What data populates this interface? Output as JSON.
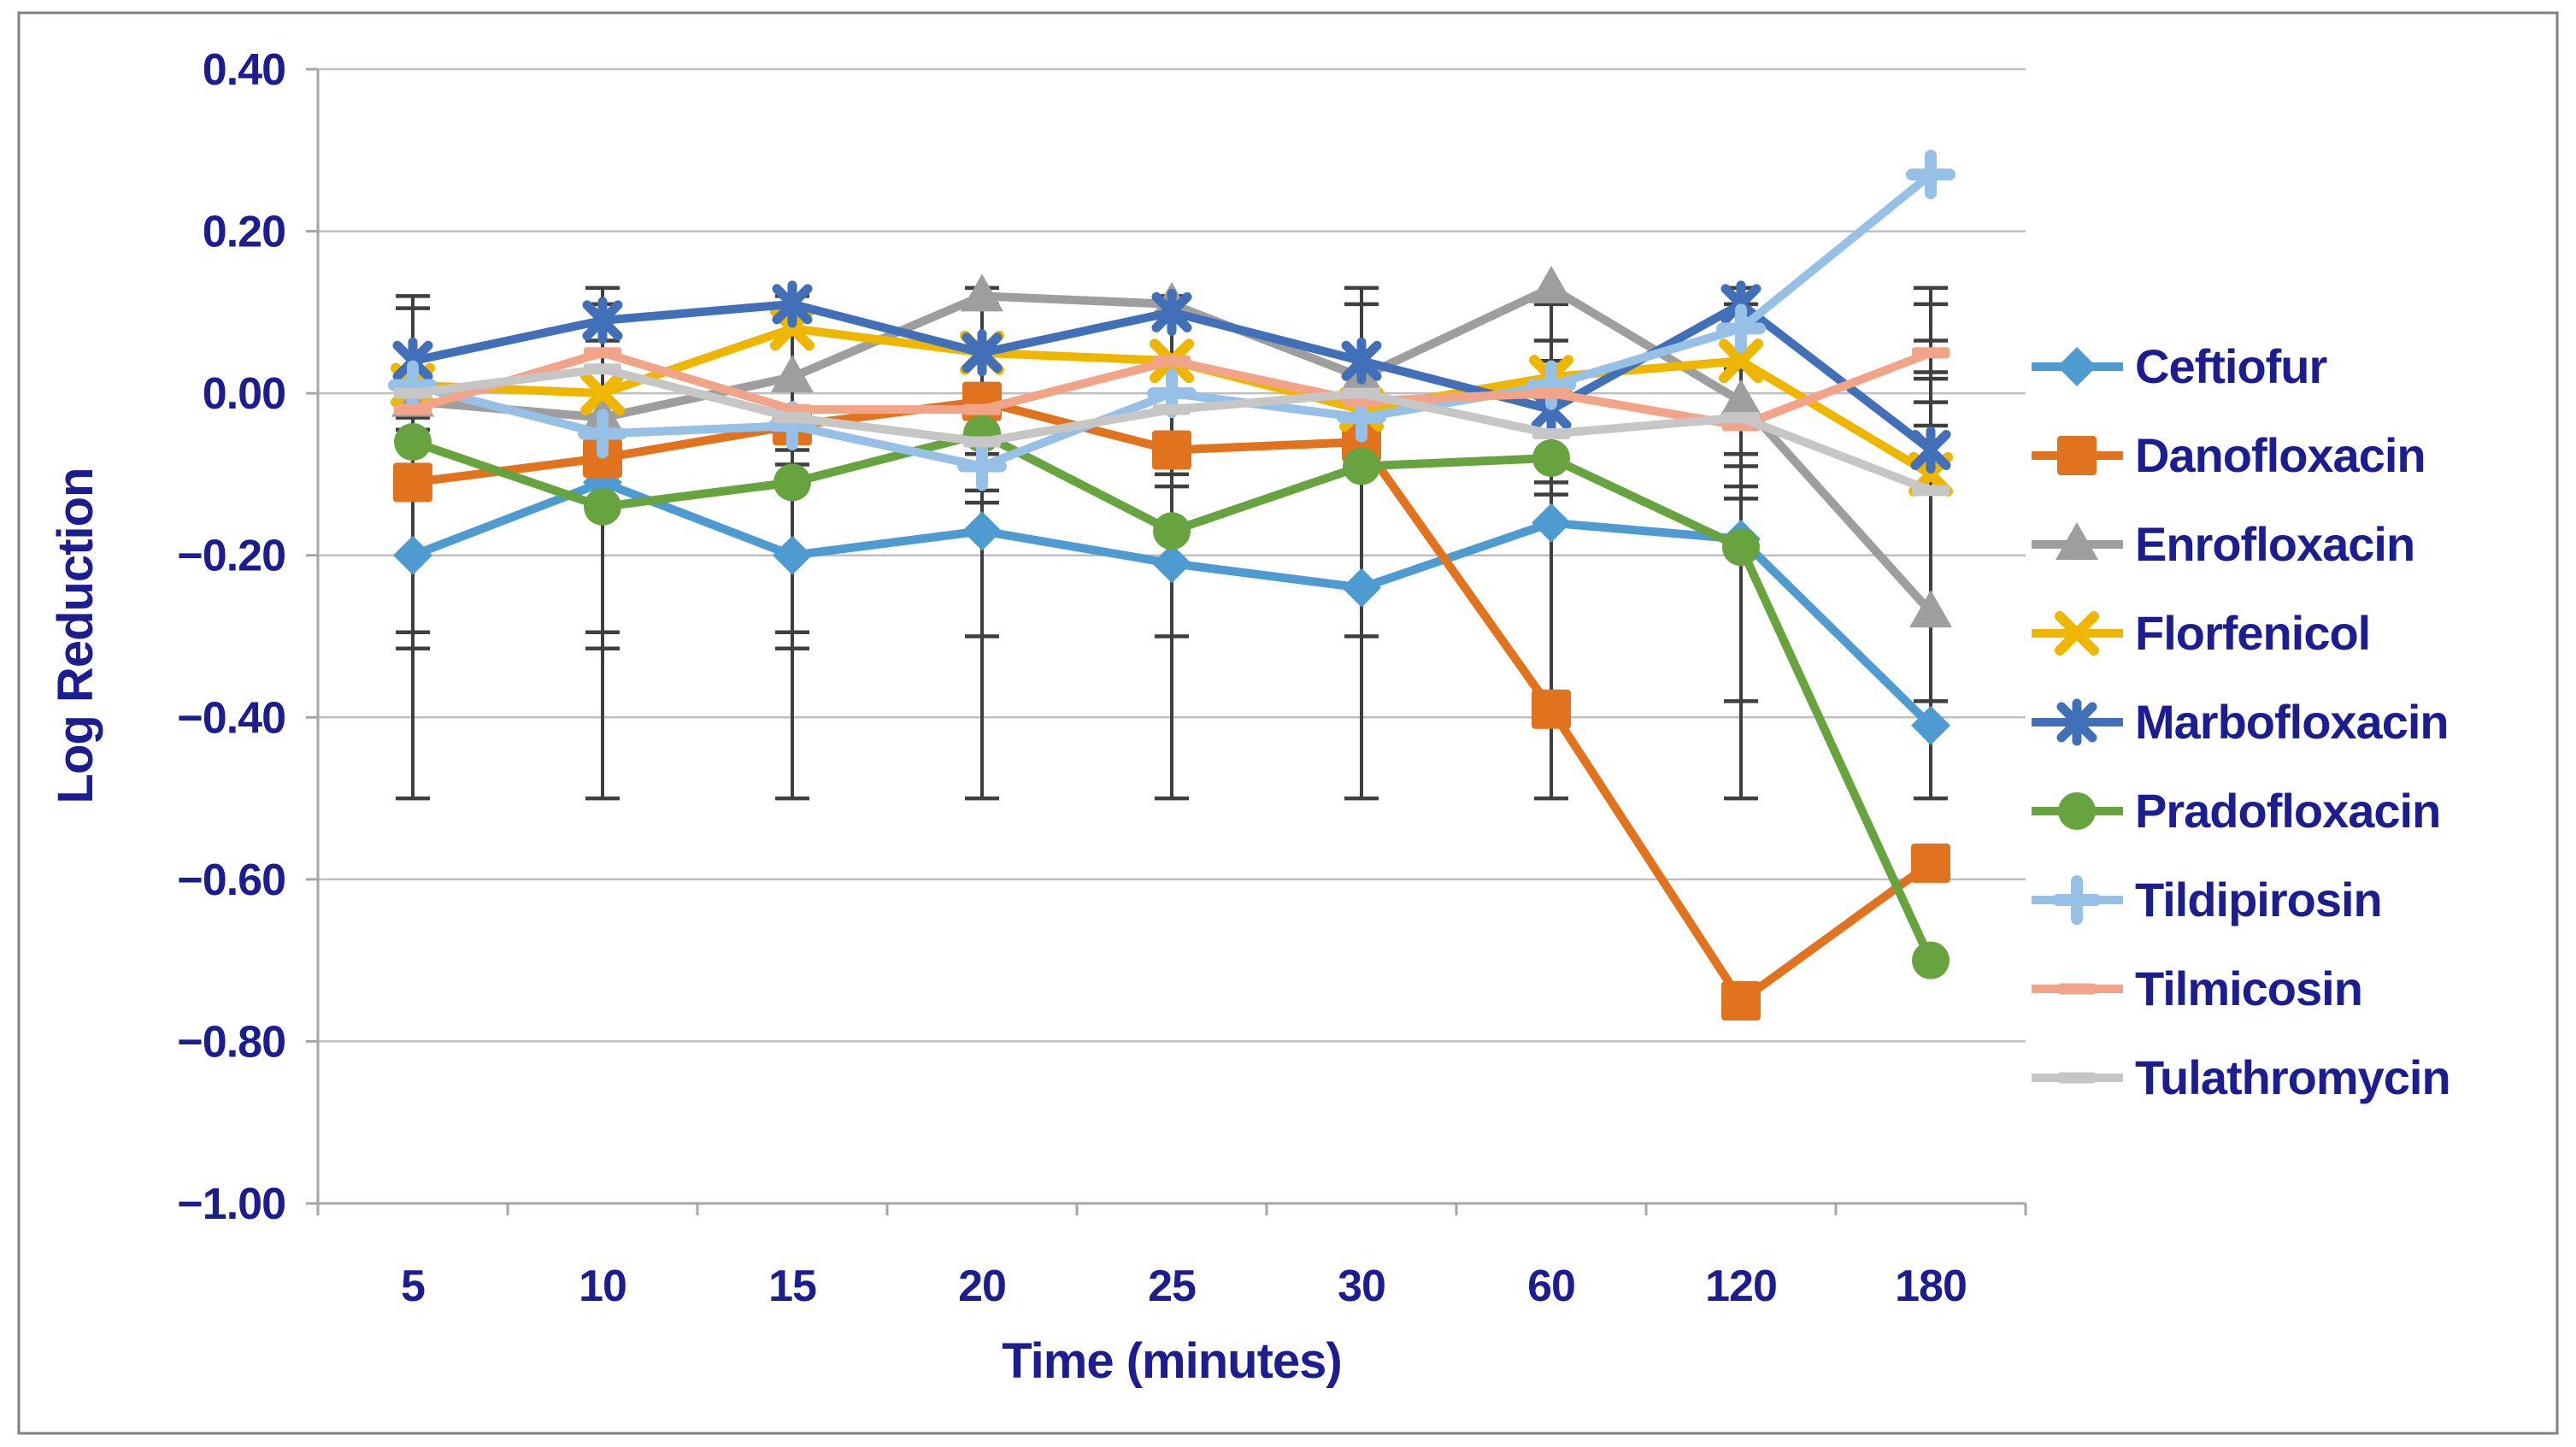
{
  "chart_data": {
    "type": "line",
    "title": "",
    "xlabel": "Time (minutes)",
    "ylabel": "Log Reduction",
    "x_categories": [
      "5",
      "10",
      "15",
      "20",
      "25",
      "30",
      "60",
      "120",
      "180"
    ],
    "ylim": [
      -1.0,
      0.4
    ],
    "ytick_step": 0.2,
    "yticks": [
      "0.40",
      "0.20",
      "0.00",
      "−0.20",
      "−0.40",
      "−0.60",
      "−0.80",
      "−1.00"
    ],
    "grid": "horizontal-only",
    "legend_position": "right",
    "series": [
      {
        "name": "Ceftiofur",
        "color": "#4E9BD2",
        "marker": "diamond",
        "values": [
          -0.2,
          -0.11,
          -0.2,
          -0.17,
          -0.21,
          -0.24,
          -0.16,
          -0.18,
          -0.41
        ]
      },
      {
        "name": "Danofloxacin",
        "color": "#E2731E",
        "marker": "square",
        "values": [
          -0.11,
          -0.08,
          -0.04,
          -0.01,
          -0.07,
          -0.06,
          -0.39,
          -0.75,
          -0.58
        ]
      },
      {
        "name": "Enrofloxacin",
        "color": "#9E9E9E",
        "marker": "triangle",
        "values": [
          -0.01,
          -0.03,
          0.02,
          0.12,
          0.11,
          0.02,
          0.13,
          -0.01,
          -0.27
        ]
      },
      {
        "name": "Florfenicol",
        "color": "#EFB600",
        "marker": "x",
        "values": [
          0.01,
          0.0,
          0.08,
          0.05,
          0.04,
          -0.02,
          0.02,
          0.04,
          -0.1
        ]
      },
      {
        "name": "Marbofloxacin",
        "color": "#4270B8",
        "marker": "star",
        "values": [
          0.04,
          0.09,
          0.11,
          0.05,
          0.1,
          0.04,
          -0.02,
          0.11,
          -0.07
        ]
      },
      {
        "name": "Pradofloxacin",
        "color": "#67A33F",
        "marker": "circle",
        "values": [
          -0.06,
          -0.14,
          -0.11,
          -0.05,
          -0.17,
          -0.09,
          -0.08,
          -0.19,
          -0.7
        ]
      },
      {
        "name": "Tildipirosin",
        "color": "#96C0E6",
        "marker": "plus",
        "values": [
          0.01,
          -0.05,
          -0.04,
          -0.09,
          0.0,
          -0.03,
          0.01,
          0.08,
          0.27
        ]
      },
      {
        "name": "Tilmicosin",
        "color": "#F2A488",
        "marker": "dash",
        "values": [
          -0.02,
          0.05,
          -0.02,
          -0.02,
          0.04,
          -0.01,
          0.0,
          -0.04,
          0.05
        ]
      },
      {
        "name": "Tulathromycin",
        "color": "#C6C6C6",
        "marker": "dash",
        "values": [
          0.0,
          0.03,
          -0.03,
          -0.06,
          -0.02,
          0.0,
          -0.05,
          -0.03,
          -0.12
        ]
      }
    ],
    "error_bars": {
      "color": "#3F3F3F",
      "caps_by_category": [
        [
          0.12,
          0.105,
          -0.03,
          -0.045,
          -0.295,
          -0.315,
          -0.5
        ],
        [
          0.13,
          0.11,
          0.065,
          -0.295,
          -0.315,
          -0.5
        ],
        [
          0.12,
          0.1,
          -0.07,
          -0.088,
          -0.295,
          -0.315,
          -0.5
        ],
        [
          0.13,
          0.11,
          -0.06,
          -0.075,
          -0.12,
          -0.135,
          -0.3,
          -0.5
        ],
        [
          0.12,
          0.1,
          -0.05,
          -0.065,
          -0.1,
          -0.115,
          -0.3,
          -0.5
        ],
        [
          0.13,
          0.11,
          -0.075,
          -0.09,
          -0.3,
          -0.5
        ],
        [
          0.11,
          0.065,
          0.04,
          -0.11,
          -0.125,
          -0.5
        ],
        [
          0.13,
          0.11,
          0.03,
          -0.075,
          -0.09,
          -0.115,
          -0.13,
          -0.38,
          -0.5
        ],
        [
          0.13,
          0.11,
          0.065,
          0.026,
          0.018,
          -0.011,
          -0.04,
          -0.38,
          -0.5
        ]
      ]
    }
  },
  "style": {
    "label_color": "#1D1D92",
    "grid_color": "#BFBFBF",
    "axis_color": "#A6A6A6",
    "figure_border_color": "#808080",
    "background": "#FFFFFF"
  }
}
